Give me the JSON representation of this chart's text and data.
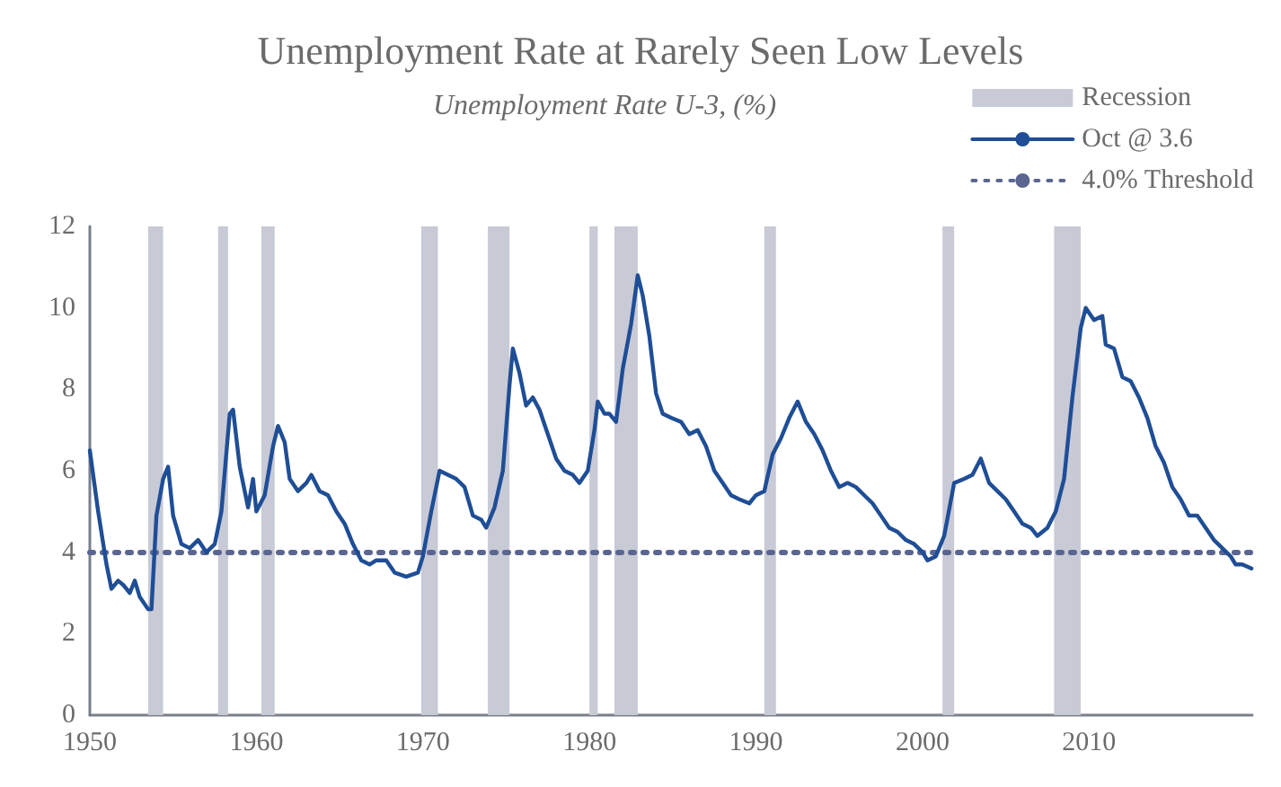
{
  "chart_data": {
    "type": "line",
    "title": "Unemployment Rate at Rarely Seen Low Levels",
    "subtitle": "Unemployment Rate U-3, (%)",
    "x": [
      1950.0,
      1950.5,
      1951.0,
      1951.3,
      1951.7,
      1952.0,
      1952.4,
      1952.7,
      1953.0,
      1953.5,
      1953.7,
      1954.0,
      1954.4,
      1954.7,
      1955.0,
      1955.5,
      1956.0,
      1956.5,
      1957.0,
      1957.5,
      1957.9,
      1958.4,
      1958.6,
      1959.0,
      1959.5,
      1959.8,
      1960.0,
      1960.5,
      1961.0,
      1961.3,
      1961.7,
      1962.0,
      1962.5,
      1963.0,
      1963.3,
      1963.8,
      1964.3,
      1964.8,
      1965.3,
      1965.8,
      1966.3,
      1966.8,
      1967.2,
      1967.8,
      1968.3,
      1969.0,
      1969.7,
      1970.0,
      1970.5,
      1971.0,
      1971.5,
      1972.0,
      1972.5,
      1973.0,
      1973.5,
      1973.8,
      1974.3,
      1974.8,
      1975.2,
      1975.4,
      1975.8,
      1976.2,
      1976.6,
      1977.0,
      1977.5,
      1978.0,
      1978.5,
      1979.0,
      1979.4,
      1979.9,
      1980.3,
      1980.5,
      1980.9,
      1981.2,
      1981.6,
      1982.0,
      1982.5,
      1982.9,
      1983.2,
      1983.6,
      1984.0,
      1984.4,
      1984.9,
      1985.5,
      1986.0,
      1986.5,
      1987.0,
      1987.5,
      1988.0,
      1988.5,
      1989.0,
      1989.6,
      1990.0,
      1990.5,
      1991.0,
      1991.5,
      1992.0,
      1992.5,
      1993.0,
      1993.5,
      1994.0,
      1994.5,
      1995.0,
      1995.5,
      1996.0,
      1996.5,
      1997.0,
      1997.5,
      1998.0,
      1998.5,
      1999.0,
      1999.5,
      2000.0,
      2000.3,
      2000.8,
      2001.3,
      2001.9,
      2002.5,
      2003.0,
      2003.5,
      2004.0,
      2004.5,
      2005.0,
      2005.5,
      2006.0,
      2006.5,
      2006.9,
      2007.5,
      2008.0,
      2008.5,
      2009.0,
      2009.5,
      2009.8,
      2010.3,
      2010.8,
      2011.0,
      2011.5,
      2012.0,
      2012.5,
      2013.0,
      2013.5,
      2014.0,
      2014.5,
      2015.0,
      2015.5,
      2016.0,
      2016.5,
      2017.0,
      2017.5,
      2018.0,
      2018.5,
      2018.8,
      2019.2,
      2019.75
    ],
    "series": [
      {
        "name": "Oct @ 3.6",
        "color": "#1f4e96",
        "values": [
          6.5,
          5.0,
          3.7,
          3.1,
          3.3,
          3.2,
          3.0,
          3.3,
          2.9,
          2.6,
          2.6,
          4.9,
          5.8,
          6.1,
          4.9,
          4.2,
          4.1,
          4.3,
          4.0,
          4.2,
          5.0,
          7.4,
          7.5,
          6.1,
          5.1,
          5.8,
          5.0,
          5.4,
          6.6,
          7.1,
          6.7,
          5.8,
          5.5,
          5.7,
          5.9,
          5.5,
          5.4,
          5.0,
          4.7,
          4.2,
          3.8,
          3.7,
          3.8,
          3.8,
          3.5,
          3.4,
          3.5,
          3.9,
          5.0,
          6.0,
          5.9,
          5.8,
          5.6,
          4.9,
          4.8,
          4.6,
          5.1,
          6.0,
          8.1,
          9.0,
          8.4,
          7.6,
          7.8,
          7.5,
          6.9,
          6.3,
          6.0,
          5.9,
          5.7,
          6.0,
          7.0,
          7.7,
          7.4,
          7.4,
          7.2,
          8.5,
          9.6,
          10.8,
          10.3,
          9.3,
          7.9,
          7.4,
          7.3,
          7.2,
          6.9,
          7.0,
          6.6,
          6.0,
          5.7,
          5.4,
          5.3,
          5.2,
          5.4,
          5.5,
          6.4,
          6.8,
          7.3,
          7.7,
          7.2,
          6.9,
          6.5,
          6.0,
          5.6,
          5.7,
          5.6,
          5.4,
          5.2,
          4.9,
          4.6,
          4.5,
          4.3,
          4.2,
          4.0,
          3.8,
          3.9,
          4.4,
          5.7,
          5.8,
          5.9,
          6.3,
          5.7,
          5.5,
          5.3,
          5.0,
          4.7,
          4.6,
          4.4,
          4.6,
          5.0,
          5.8,
          7.8,
          9.5,
          10.0,
          9.7,
          9.8,
          9.1,
          9.0,
          8.3,
          8.2,
          7.8,
          7.3,
          6.6,
          6.2,
          5.6,
          5.3,
          4.9,
          4.9,
          4.6,
          4.3,
          4.1,
          3.9,
          3.7,
          3.7,
          3.6
        ]
      }
    ],
    "xlim": [
      1950,
      2019.8
    ],
    "xticks": [
      1950,
      1960,
      1970,
      1980,
      1990,
      2000,
      2010
    ],
    "ylim": [
      0,
      12
    ],
    "yticks": [
      0,
      2,
      4,
      6,
      8,
      10,
      12
    ],
    "bands": [
      {
        "axis": "x",
        "from": 1953.5,
        "to": 1954.4,
        "label": "Recession",
        "color": "#c8cad6"
      },
      {
        "axis": "x",
        "from": 1957.7,
        "to": 1958.3,
        "color": "#c8cad6"
      },
      {
        "axis": "x",
        "from": 1960.3,
        "to": 1961.1,
        "color": "#c8cad6"
      },
      {
        "axis": "x",
        "from": 1969.9,
        "to": 1970.9,
        "color": "#c8cad6"
      },
      {
        "axis": "x",
        "from": 1973.9,
        "to": 1975.2,
        "color": "#c8cad6"
      },
      {
        "axis": "x",
        "from": 1980.0,
        "to": 1980.5,
        "color": "#c8cad6"
      },
      {
        "axis": "x",
        "from": 1981.5,
        "to": 1982.9,
        "color": "#c8cad6"
      },
      {
        "axis": "x",
        "from": 1990.5,
        "to": 1991.2,
        "color": "#c8cad6"
      },
      {
        "axis": "x",
        "from": 2001.2,
        "to": 2001.9,
        "color": "#c8cad6"
      },
      {
        "axis": "x",
        "from": 2007.9,
        "to": 2009.5,
        "color": "#c8cad6"
      }
    ],
    "ref_lines": [
      {
        "axis": "y",
        "value": 4,
        "label": "4.0% Threshold",
        "color": "#5a6690",
        "line_style": "dotted"
      }
    ],
    "grid": false,
    "legend": "top right",
    "marker": "none",
    "line_style": "solid"
  }
}
